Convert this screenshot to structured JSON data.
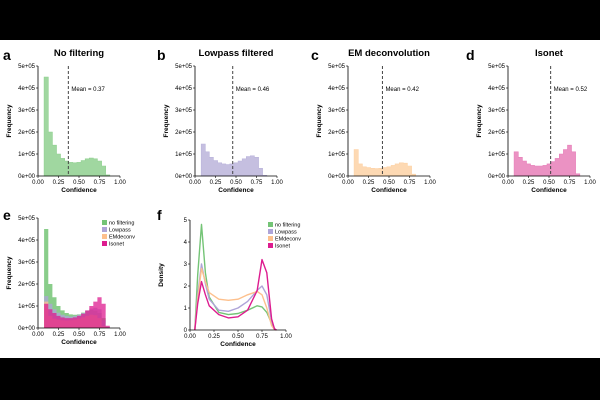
{
  "chart_data": [
    {
      "id": "a",
      "panel_label": "a",
      "type": "histogram",
      "title": "No filtering",
      "xlabel": "Confidence",
      "ylabel": "Frequency",
      "xlim": [
        0,
        1
      ],
      "ylim": [
        0,
        500000
      ],
      "x_ticks": [
        "0.00",
        "0.25",
        "0.50",
        "0.75",
        "1.00"
      ],
      "y_ticks": [
        "0e+00",
        "1e+05",
        "2e+05",
        "3e+05",
        "4e+05",
        "5e+05"
      ],
      "mean": 0.37,
      "mean_label": "Mean = 0.37",
      "color": "#8fd08f",
      "x": [
        0.1,
        0.15,
        0.2,
        0.25,
        0.3,
        0.35,
        0.4,
        0.45,
        0.5,
        0.55,
        0.6,
        0.65,
        0.7,
        0.75,
        0.8,
        0.85
      ],
      "values": [
        450000,
        200000,
        140000,
        100000,
        80000,
        68000,
        62000,
        60000,
        62000,
        70000,
        78000,
        82000,
        78000,
        68000,
        45000,
        5000
      ]
    },
    {
      "id": "b",
      "panel_label": "b",
      "type": "histogram",
      "title": "Lowpass filtered",
      "xlabel": "Confidence",
      "ylabel": "Frequency",
      "xlim": [
        0,
        1
      ],
      "ylim": [
        0,
        500000
      ],
      "x_ticks": [
        "0.00",
        "0.25",
        "0.50",
        "0.75",
        "1.00"
      ],
      "y_ticks": [
        "0e+00",
        "1e+05",
        "2e+05",
        "3e+05",
        "4e+05",
        "5e+05"
      ],
      "mean": 0.46,
      "mean_label": "Mean = 0.46",
      "color": "#bbb4db",
      "x": [
        0.1,
        0.15,
        0.2,
        0.25,
        0.3,
        0.35,
        0.4,
        0.45,
        0.5,
        0.55,
        0.6,
        0.65,
        0.7,
        0.75,
        0.8,
        0.85
      ],
      "values": [
        145000,
        110000,
        85000,
        70000,
        60000,
        55000,
        52000,
        55000,
        60000,
        68000,
        78000,
        88000,
        92000,
        85000,
        35000,
        3000
      ]
    },
    {
      "id": "c",
      "panel_label": "c",
      "type": "histogram",
      "title": "EM deconvolution",
      "xlabel": "Confidence",
      "ylabel": "Frequency",
      "xlim": [
        0,
        1
      ],
      "ylim": [
        0,
        500000
      ],
      "x_ticks": [
        "0.00",
        "0.25",
        "0.50",
        "0.75",
        "1.00"
      ],
      "y_ticks": [
        "0e+00",
        "1e+05",
        "2e+05",
        "3e+05",
        "4e+05",
        "5e+05"
      ],
      "mean": 0.42,
      "mean_label": "Mean = 0.42",
      "color": "#fdd2a6",
      "x": [
        0.1,
        0.15,
        0.2,
        0.25,
        0.3,
        0.35,
        0.4,
        0.45,
        0.5,
        0.55,
        0.6,
        0.65,
        0.7,
        0.75,
        0.8
      ],
      "values": [
        120000,
        55000,
        42000,
        38000,
        35000,
        34000,
        35000,
        38000,
        42000,
        48000,
        55000,
        60000,
        58000,
        45000,
        8000
      ]
    },
    {
      "id": "d",
      "panel_label": "d",
      "type": "histogram",
      "title": "Isonet",
      "xlabel": "Confidence",
      "ylabel": "Frequency",
      "xlim": [
        0,
        1
      ],
      "ylim": [
        0,
        500000
      ],
      "x_ticks": [
        "0.00",
        "0.25",
        "0.50",
        "0.75",
        "1.00"
      ],
      "y_ticks": [
        "0e+00",
        "1e+05",
        "2e+05",
        "3e+05",
        "4e+05",
        "5e+05"
      ],
      "mean": 0.52,
      "mean_label": "Mean = 0.52",
      "color": "#e77fb9",
      "x": [
        0.1,
        0.15,
        0.2,
        0.25,
        0.3,
        0.35,
        0.4,
        0.45,
        0.5,
        0.55,
        0.6,
        0.65,
        0.7,
        0.75,
        0.8,
        0.85
      ],
      "values": [
        110000,
        85000,
        68000,
        55000,
        48000,
        45000,
        45000,
        48000,
        55000,
        65000,
        80000,
        100000,
        120000,
        140000,
        110000,
        10000
      ]
    },
    {
      "id": "e",
      "panel_label": "e",
      "type": "area",
      "xlabel": "Confidence",
      "ylabel": "Frequency",
      "xlim": [
        0,
        1
      ],
      "ylim": [
        0,
        500000
      ],
      "x_ticks": [
        "0.00",
        "0.25",
        "0.50",
        "0.75",
        "1.00"
      ],
      "y_ticks": [
        "0e+00",
        "1e+05",
        "2e+05",
        "3e+05",
        "4e+05",
        "5e+05"
      ],
      "x": [
        0.1,
        0.15,
        0.2,
        0.25,
        0.3,
        0.35,
        0.4,
        0.45,
        0.5,
        0.55,
        0.6,
        0.65,
        0.7,
        0.75,
        0.8,
        0.85
      ],
      "series": [
        {
          "name": "no filtering",
          "color": "#74c476",
          "values": [
            450000,
            200000,
            140000,
            100000,
            80000,
            68000,
            62000,
            60000,
            62000,
            70000,
            78000,
            82000,
            78000,
            68000,
            45000,
            5000
          ]
        },
        {
          "name": "Lowpass",
          "color": "#aea4d8",
          "values": [
            145000,
            110000,
            85000,
            70000,
            60000,
            55000,
            52000,
            55000,
            60000,
            68000,
            78000,
            88000,
            92000,
            85000,
            35000,
            3000
          ]
        },
        {
          "name": "EMdeconv",
          "color": "#fdc08d",
          "values": [
            120000,
            55000,
            42000,
            38000,
            35000,
            34000,
            35000,
            38000,
            42000,
            48000,
            55000,
            60000,
            58000,
            45000,
            8000,
            0
          ]
        },
        {
          "name": "Isonet",
          "color": "#dd1c8f",
          "values": [
            110000,
            85000,
            68000,
            55000,
            48000,
            45000,
            45000,
            48000,
            55000,
            65000,
            80000,
            100000,
            120000,
            140000,
            110000,
            10000
          ]
        }
      ]
    },
    {
      "id": "f",
      "panel_label": "f",
      "type": "line",
      "xlabel": "Confidence",
      "ylabel": "Density",
      "xlim": [
        0,
        1
      ],
      "ylim": [
        0,
        5
      ],
      "x_ticks": [
        "0.00",
        "0.25",
        "0.50",
        "0.75",
        "1.00"
      ],
      "y_ticks": [
        "0",
        "1",
        "2",
        "3",
        "4",
        "5"
      ],
      "x": [
        0.05,
        0.08,
        0.12,
        0.16,
        0.2,
        0.3,
        0.4,
        0.5,
        0.6,
        0.7,
        0.75,
        0.8,
        0.85,
        0.88,
        0.9
      ],
      "series": [
        {
          "name": "no filtering",
          "color": "#74c476",
          "values": [
            0,
            2.5,
            4.8,
            2.6,
            1.5,
            0.8,
            0.7,
            0.75,
            0.9,
            1.1,
            1.05,
            0.8,
            0.3,
            0.05,
            0
          ]
        },
        {
          "name": "Lowpass",
          "color": "#aea4d8",
          "values": [
            0,
            1.6,
            3.0,
            2.1,
            1.4,
            0.9,
            0.85,
            1.0,
            1.3,
            1.8,
            2.0,
            1.6,
            0.4,
            0.05,
            0
          ]
        },
        {
          "name": "EMdeconv",
          "color": "#fdc08d",
          "values": [
            0,
            1.4,
            2.8,
            2.2,
            1.7,
            1.4,
            1.35,
            1.4,
            1.6,
            1.75,
            1.6,
            1.0,
            0.2,
            0.02,
            0
          ]
        },
        {
          "name": "Isonet",
          "color": "#dd1c8f",
          "values": [
            0,
            1.2,
            2.2,
            1.6,
            1.1,
            0.7,
            0.55,
            0.6,
            0.9,
            1.8,
            3.2,
            2.6,
            0.5,
            0.05,
            0
          ]
        }
      ]
    }
  ]
}
